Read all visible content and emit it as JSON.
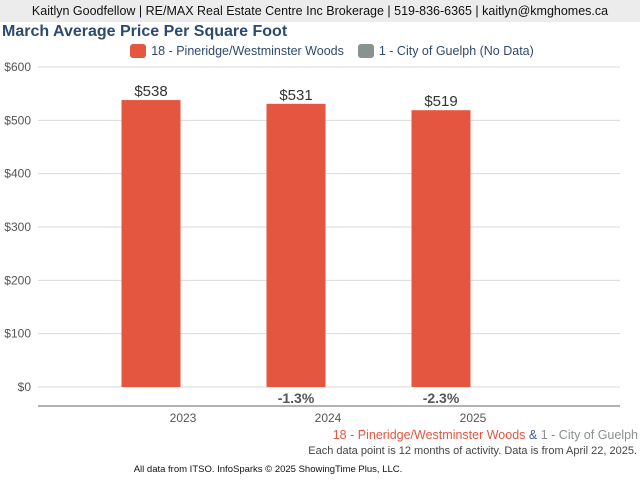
{
  "header": {
    "contact_line": "Kaitlyn Goodfellow | RE/MAX Real Estate Centre Inc Brokerage | 519-836-6365 | kaitlyn@kmghomes.ca"
  },
  "colors": {
    "series_primary": "#e45640",
    "series_secondary": "#8a9290",
    "title": "#2c4a6f",
    "ampersand": "#3b5f9a"
  },
  "chart_data": {
    "type": "bar",
    "title": "March Average Price Per Square Foot",
    "xlabel": "",
    "ylabel": "",
    "categories": [
      "2023",
      "2024",
      "2025"
    ],
    "series": [
      {
        "name": "18 - Pineridge/Westminster Woods",
        "values": [
          538,
          531,
          519
        ],
        "value_labels": [
          "$538",
          "$531",
          "$519"
        ],
        "change_labels": [
          "",
          "-1.3%",
          "-2.3%"
        ]
      },
      {
        "name": "1 - City of Guelph (No Data)",
        "values": [
          null,
          null,
          null
        ]
      }
    ],
    "ylim": [
      0,
      600
    ],
    "yticks": [
      0,
      100,
      200,
      300,
      400,
      500,
      600
    ],
    "ytick_labels": [
      "$0",
      "$100",
      "$200",
      "$300",
      "$400",
      "$500",
      "$600"
    ],
    "grid": true,
    "legend": "top-center"
  },
  "footer": {
    "series_primary": "18 - Pineridge/Westminster Woods",
    "ampersand": "&",
    "series_secondary": "1 - City of Guelph",
    "note": "Each data point is 12 months of activity. Data is from April 22, 2025.",
    "credit": "All data from ITSO. InfoSparks © 2025 ShowingTime Plus, LLC."
  }
}
